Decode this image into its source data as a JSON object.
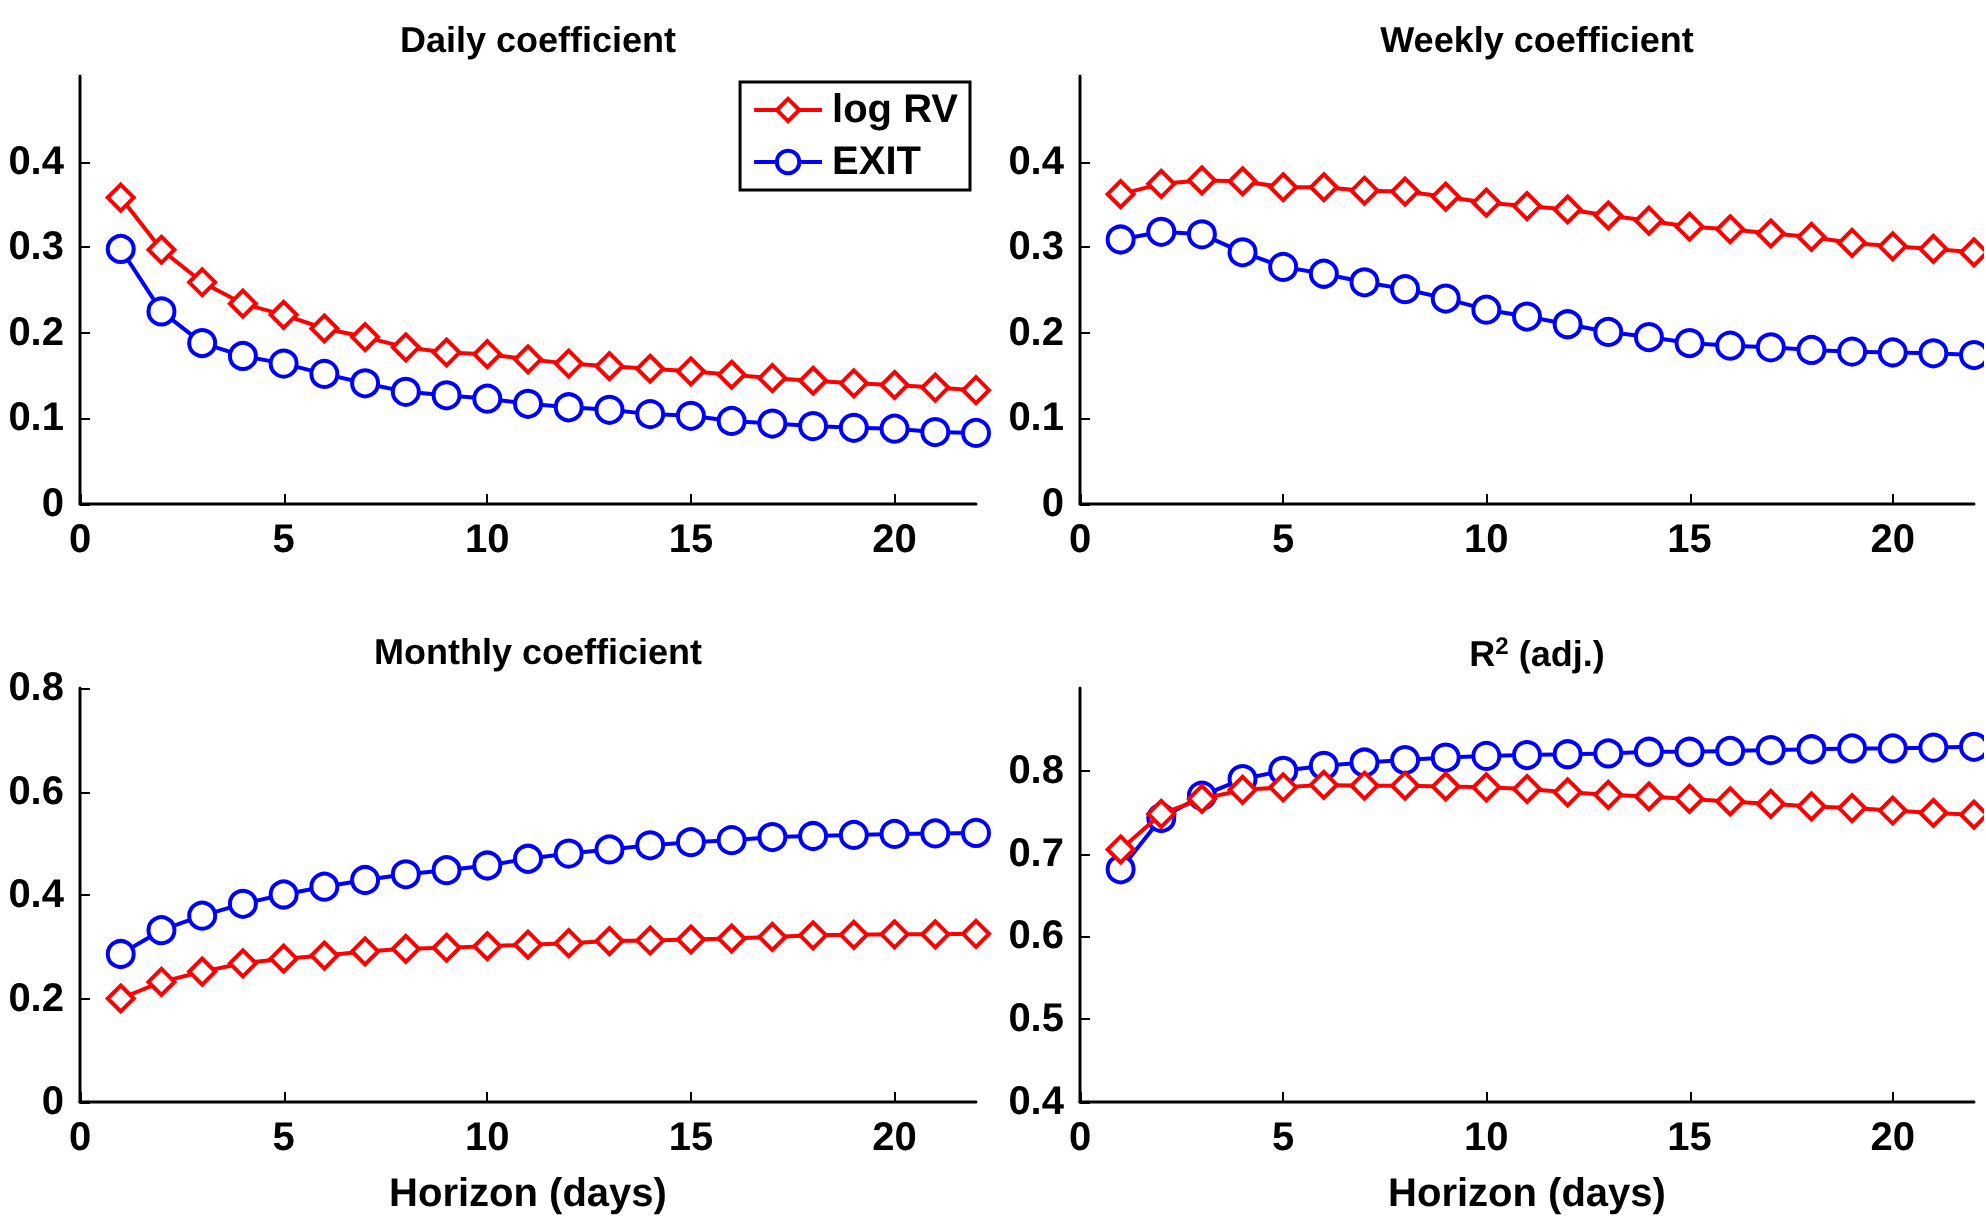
{
  "chart_data": [
    {
      "type": "line",
      "title": "Daily coefficient",
      "x": [
        1,
        2,
        3,
        4,
        5,
        6,
        7,
        8,
        9,
        10,
        11,
        12,
        13,
        14,
        15,
        16,
        17,
        18,
        19,
        20,
        21,
        22
      ],
      "xlim": [
        0,
        22
      ],
      "xticks": [
        0,
        5,
        10,
        15,
        20
      ],
      "ylim": [
        0,
        0.5
      ],
      "yticks": [
        0,
        0.1,
        0.2,
        0.3,
        0.4
      ],
      "grid": false,
      "legend": "top right",
      "series": [
        {
          "name": "log RV",
          "color": "#ff0000",
          "marker": "diamond",
          "values": [
            0.358,
            0.297,
            0.259,
            0.234,
            0.221,
            0.205,
            0.195,
            0.183,
            0.177,
            0.175,
            0.169,
            0.164,
            0.161,
            0.158,
            0.155,
            0.151,
            0.147,
            0.144,
            0.141,
            0.139,
            0.136,
            0.133
          ]
        },
        {
          "name": "EXIT",
          "color": "#0000ff",
          "marker": "circle",
          "values": [
            0.298,
            0.225,
            0.188,
            0.173,
            0.164,
            0.152,
            0.141,
            0.131,
            0.127,
            0.123,
            0.117,
            0.113,
            0.11,
            0.105,
            0.103,
            0.097,
            0.094,
            0.091,
            0.089,
            0.088,
            0.084,
            0.083
          ]
        }
      ]
    },
    {
      "type": "line",
      "title": "Weekly coefficient",
      "x": [
        1,
        2,
        3,
        4,
        5,
        6,
        7,
        8,
        9,
        10,
        11,
        12,
        13,
        14,
        15,
        16,
        17,
        18,
        19,
        20,
        21,
        22
      ],
      "xlim": [
        0,
        22
      ],
      "xticks": [
        0,
        5,
        10,
        15,
        20
      ],
      "ylim": [
        0,
        0.5
      ],
      "yticks": [
        0,
        0.1,
        0.2,
        0.3,
        0.4
      ],
      "grid": false,
      "series": [
        {
          "color": "#ff0000",
          "marker": "diamond",
          "values": [
            0.362,
            0.374,
            0.378,
            0.377,
            0.37,
            0.37,
            0.366,
            0.365,
            0.359,
            0.352,
            0.348,
            0.344,
            0.337,
            0.331,
            0.324,
            0.321,
            0.316,
            0.312,
            0.305,
            0.301,
            0.298,
            0.294
          ]
        },
        {
          "color": "#0000ff",
          "marker": "circle",
          "values": [
            0.309,
            0.318,
            0.315,
            0.294,
            0.277,
            0.269,
            0.259,
            0.251,
            0.24,
            0.227,
            0.219,
            0.21,
            0.201,
            0.195,
            0.188,
            0.185,
            0.183,
            0.18,
            0.178,
            0.177,
            0.176,
            0.174
          ]
        }
      ]
    },
    {
      "type": "line",
      "title": "Monthly coefficient",
      "xlabel": "Horizon (days)",
      "x": [
        1,
        2,
        3,
        4,
        5,
        6,
        7,
        8,
        9,
        10,
        11,
        12,
        13,
        14,
        15,
        16,
        17,
        18,
        19,
        20,
        21,
        22
      ],
      "xlim": [
        0,
        22
      ],
      "xticks": [
        0,
        5,
        10,
        15,
        20
      ],
      "ylim": [
        0,
        0.8
      ],
      "yticks": [
        0,
        0.2,
        0.4,
        0.6,
        0.8
      ],
      "grid": false,
      "series": [
        {
          "color": "#ff0000",
          "marker": "diamond",
          "values": [
            0.2,
            0.232,
            0.252,
            0.268,
            0.277,
            0.283,
            0.291,
            0.296,
            0.298,
            0.301,
            0.304,
            0.307,
            0.311,
            0.312,
            0.314,
            0.316,
            0.319,
            0.322,
            0.323,
            0.324,
            0.324,
            0.325
          ]
        },
        {
          "color": "#0000ff",
          "marker": "circle",
          "values": [
            0.286,
            0.332,
            0.36,
            0.383,
            0.401,
            0.416,
            0.429,
            0.44,
            0.448,
            0.457,
            0.47,
            0.48,
            0.488,
            0.496,
            0.502,
            0.506,
            0.512,
            0.514,
            0.516,
            0.518,
            0.519,
            0.52
          ]
        }
      ]
    },
    {
      "type": "line",
      "title": "R$^{2}$ (adj.)",
      "xlabel": "Horizon (days)",
      "x": [
        1,
        2,
        3,
        4,
        5,
        6,
        7,
        8,
        9,
        10,
        11,
        12,
        13,
        14,
        15,
        16,
        17,
        18,
        19,
        20,
        21,
        22
      ],
      "xlim": [
        0,
        22
      ],
      "xticks": [
        0,
        5,
        10,
        15,
        20
      ],
      "ylim": [
        0.4,
        0.9
      ],
      "yticks": [
        0.4,
        0.5,
        0.6,
        0.7,
        0.8
      ],
      "grid": false,
      "series": [
        {
          "color": "#ff0000",
          "marker": "diamond",
          "values": [
            0.705,
            0.748,
            0.766,
            0.777,
            0.78,
            0.783,
            0.782,
            0.782,
            0.781,
            0.78,
            0.778,
            0.774,
            0.771,
            0.769,
            0.766,
            0.763,
            0.76,
            0.757,
            0.755,
            0.752,
            0.749,
            0.747
          ]
        },
        {
          "color": "#0000ff",
          "marker": "circle",
          "values": [
            0.681,
            0.743,
            0.77,
            0.79,
            0.8,
            0.806,
            0.81,
            0.813,
            0.816,
            0.818,
            0.819,
            0.82,
            0.821,
            0.823,
            0.823,
            0.824,
            0.825,
            0.826,
            0.827,
            0.827,
            0.828,
            0.829
          ]
        }
      ]
    }
  ]
}
